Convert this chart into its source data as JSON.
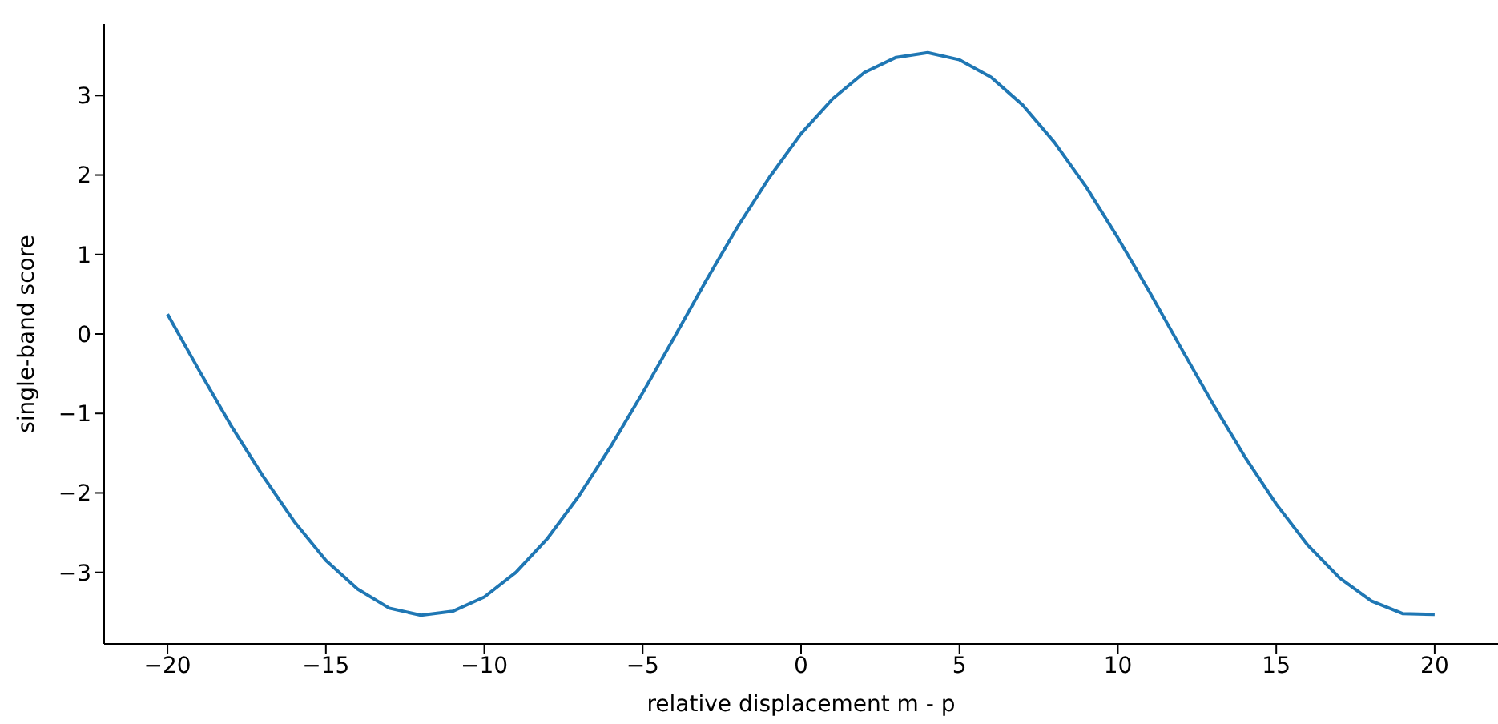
{
  "chart_data": {
    "type": "line",
    "xlabel": "relative displacement m - p",
    "ylabel": "single-band score",
    "x": [
      -20,
      -19,
      -18,
      -17,
      -16,
      -15,
      -14,
      -13,
      -12,
      -11,
      -10,
      -9,
      -8,
      -7,
      -6,
      -5,
      -4,
      -3,
      -2,
      -1,
      0,
      1,
      2,
      3,
      4,
      5,
      6,
      7,
      8,
      9,
      10,
      11,
      12,
      13,
      14,
      15,
      16,
      17,
      18,
      19,
      20
    ],
    "series": [
      {
        "color": "#1f77b4",
        "values": [
          0.25,
          -0.46,
          -1.15,
          -1.78,
          -2.36,
          -2.85,
          -3.21,
          -3.45,
          -3.54,
          -3.49,
          -3.31,
          -3.0,
          -2.57,
          -2.03,
          -1.41,
          -0.74,
          -0.04,
          0.67,
          1.35,
          1.97,
          2.52,
          2.96,
          3.29,
          3.48,
          3.54,
          3.45,
          3.23,
          2.88,
          2.41,
          1.85,
          1.21,
          0.53,
          -0.18,
          -0.88,
          -1.54,
          -2.14,
          -2.66,
          -3.07,
          -3.36,
          -3.52,
          -3.53
        ]
      }
    ],
    "xlim": [
      -22,
      22
    ],
    "xticks": [
      -20,
      -15,
      -10,
      -5,
      0,
      5,
      10,
      15,
      20
    ],
    "ylim": [
      -3.9,
      3.9
    ],
    "yticks": [
      -3,
      -2,
      -1,
      0,
      1,
      2,
      3
    ],
    "grid": false,
    "legend": false,
    "marker": "none",
    "line_style": "solid"
  }
}
